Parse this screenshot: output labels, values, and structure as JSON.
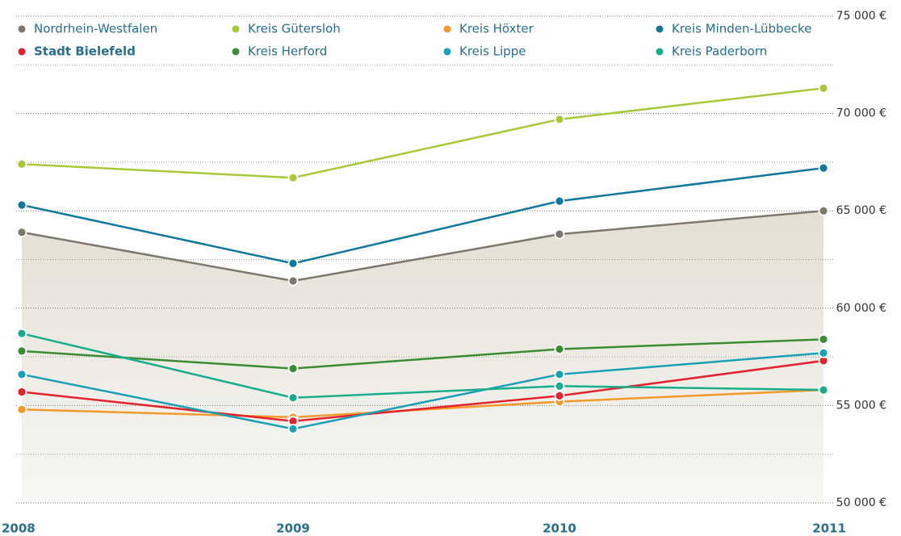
{
  "chart_data": {
    "type": "line",
    "categories": [
      "2008",
      "2009",
      "2010",
      "2011"
    ],
    "series": [
      {
        "name": "Nordrhein-Westfalen",
        "color": "#7d786c",
        "values": [
          63900,
          61400,
          63800,
          65000
        ],
        "area": true
      },
      {
        "name": "Kreis Gütersloh",
        "color": "#a8c83a",
        "values": [
          67400,
          66700,
          69700,
          71300
        ]
      },
      {
        "name": "Kreis Höxter",
        "color": "#f39a2b",
        "values": [
          54800,
          54400,
          55200,
          55800
        ]
      },
      {
        "name": "Kreis Minden-Lübbecke",
        "color": "#10779d",
        "values": [
          65300,
          62300,
          65500,
          67200
        ]
      },
      {
        "name": "Stadt Bielefeld",
        "color": "#e3232d",
        "values": [
          55700,
          54200,
          55500,
          57300
        ],
        "highlight": true
      },
      {
        "name": "Kreis Herford",
        "color": "#3a8c35",
        "values": [
          57800,
          56900,
          57900,
          58400
        ]
      },
      {
        "name": "Kreis Lippe",
        "color": "#1aa0b5",
        "values": [
          56600,
          53800,
          56600,
          57700
        ]
      },
      {
        "name": "Kreis Paderborn",
        "color": "#1aad8c",
        "values": [
          58700,
          55400,
          56000,
          55800
        ]
      }
    ],
    "ylim": [
      50000,
      75000
    ],
    "yticks": [
      {
        "value": 50000,
        "label": "50 000 €"
      },
      {
        "value": 55000,
        "label": "55 000 €"
      },
      {
        "value": 60000,
        "label": "60 000 €"
      },
      {
        "value": 65000,
        "label": "65 000 €"
      },
      {
        "value": 70000,
        "label": "70 000 €"
      },
      {
        "value": 75000,
        "label": "75 000 €"
      }
    ],
    "minor_yticks": [
      52500,
      57500,
      62500,
      67500,
      72500
    ],
    "grid": true,
    "y_axis_side": "right",
    "legend": "top"
  }
}
